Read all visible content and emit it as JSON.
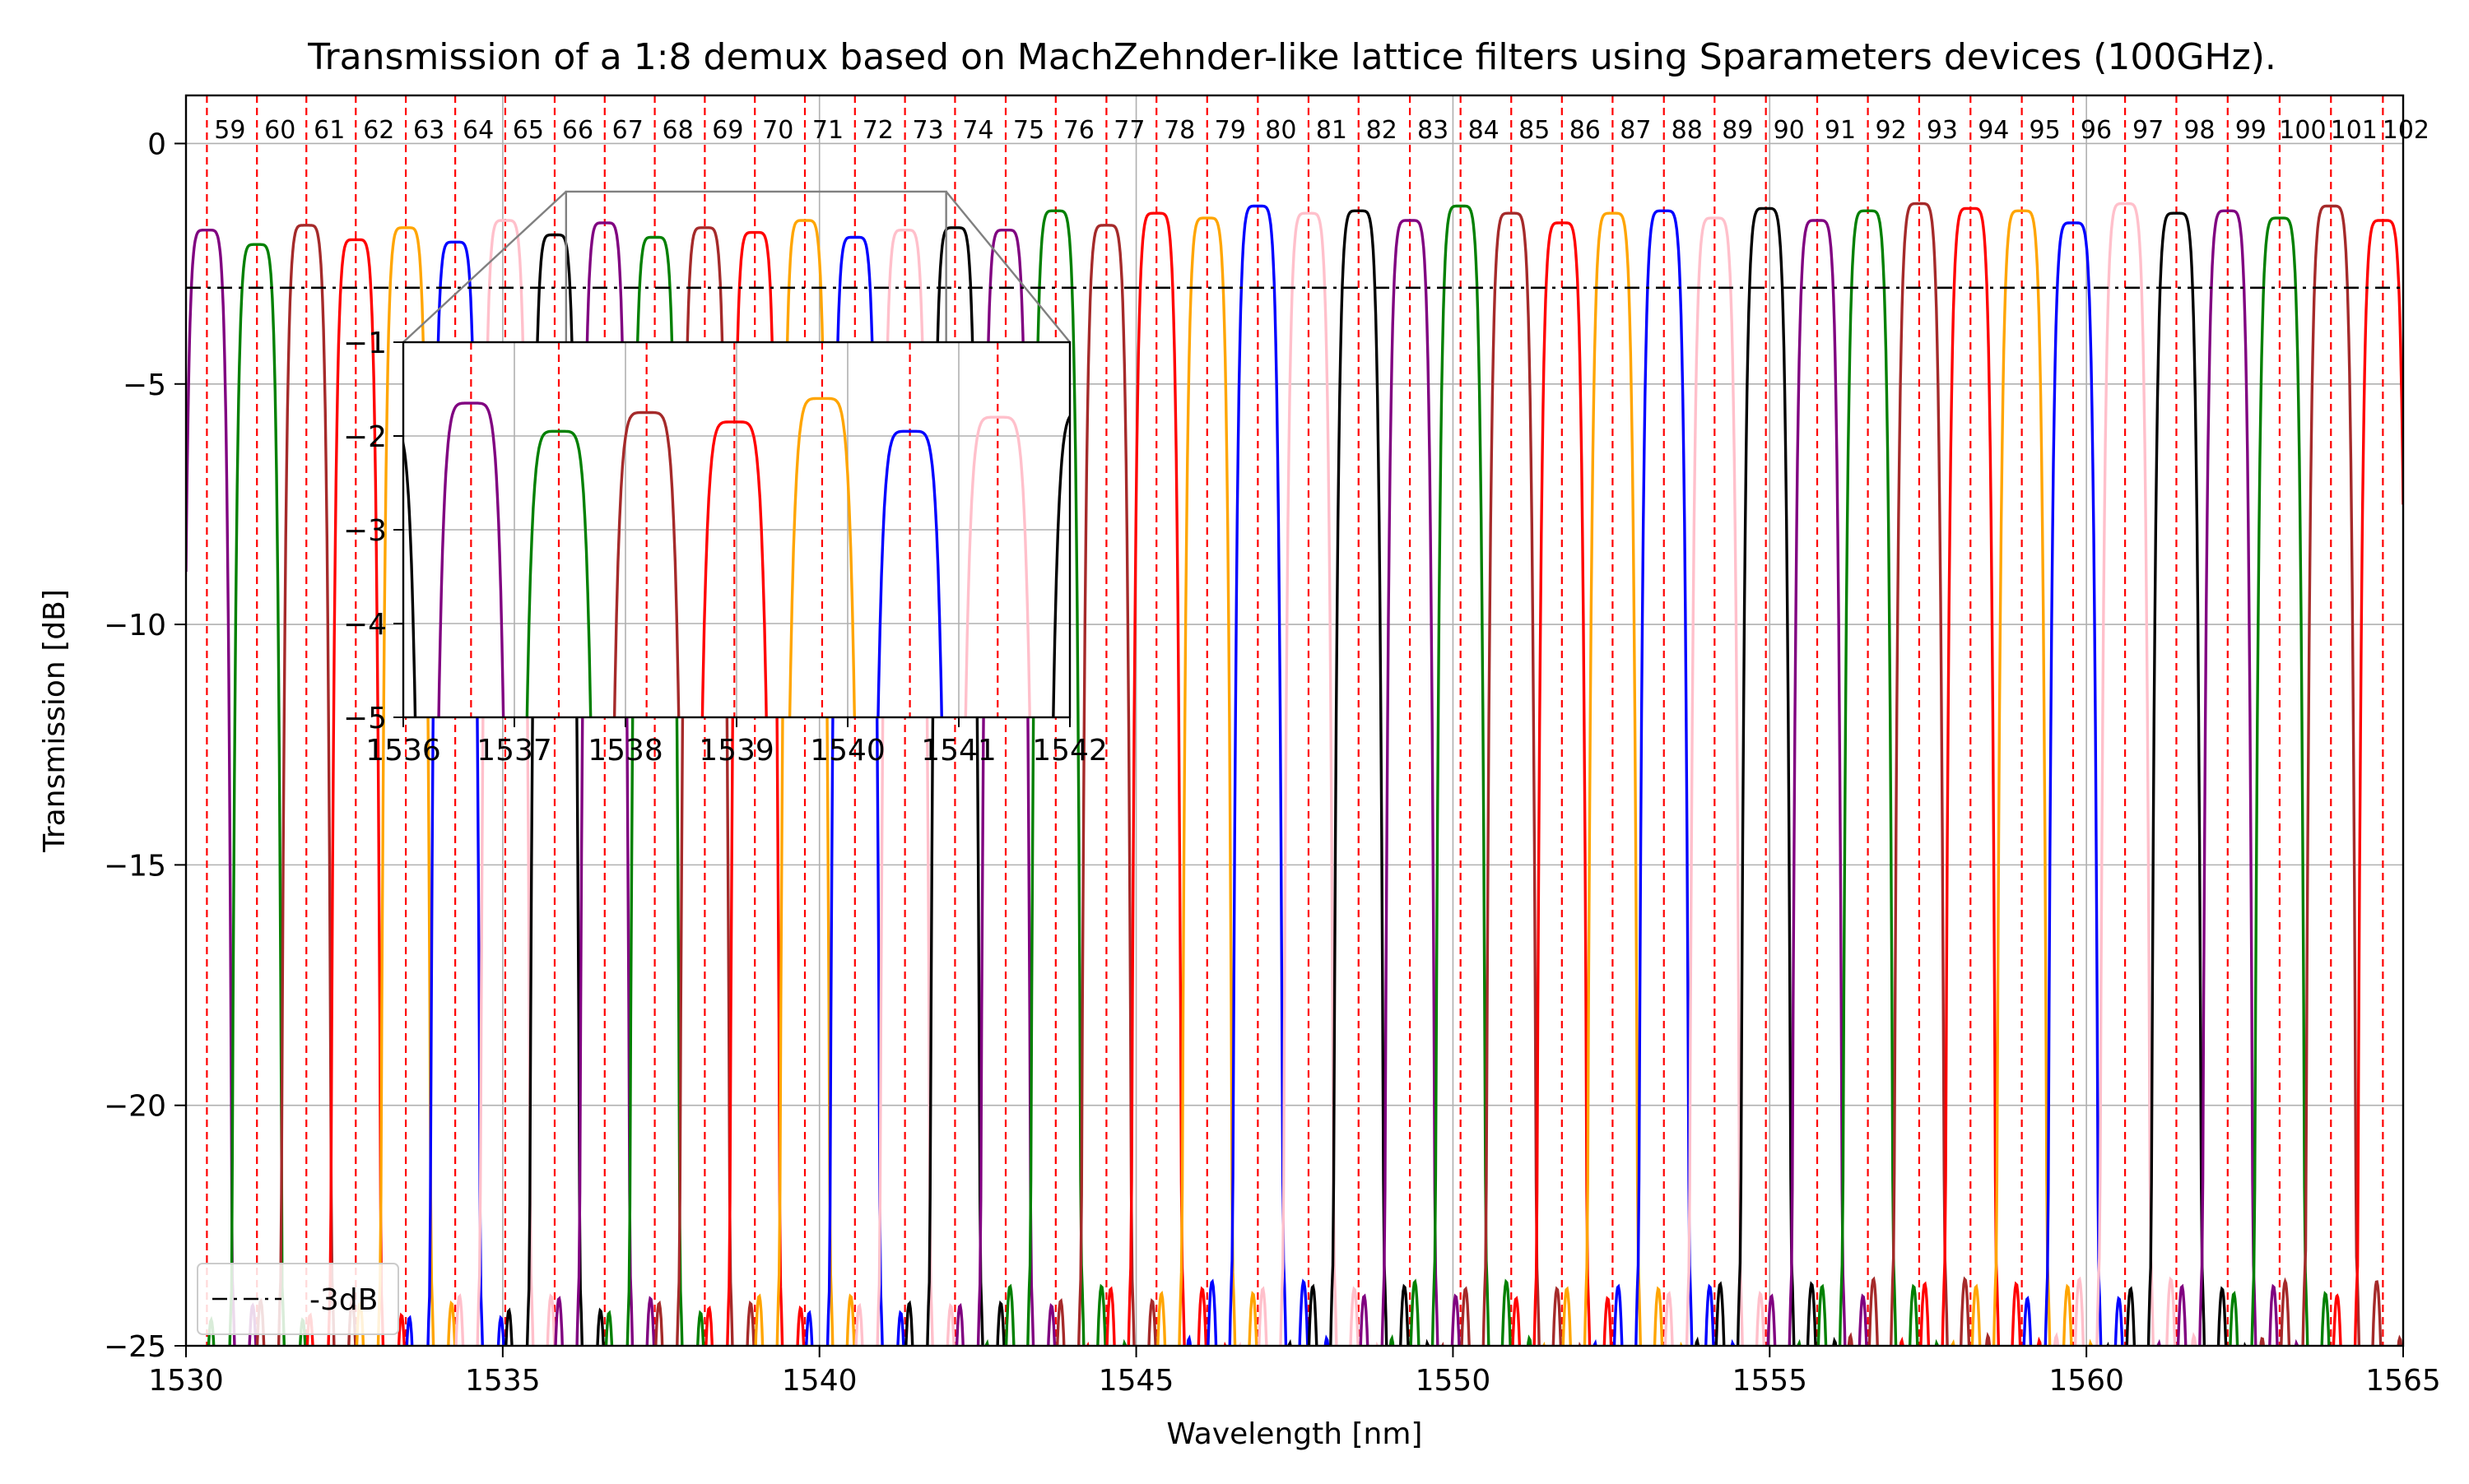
{
  "chart_data": {
    "type": "line",
    "title": "Transmission of a 1:8 demux based on MachZehnder-like lattice filters using Sparameters devices (100GHz).",
    "xlabel": "Wavelength [nm]",
    "ylabel": "Transmission [dB]",
    "xlim": [
      1530,
      1565
    ],
    "ylim": [
      -25,
      1
    ],
    "x_ticks": [
      "1530",
      "1535",
      "1540",
      "1545",
      "1550",
      "1555",
      "1560",
      "1565"
    ],
    "y_ticks": [
      "0",
      "−5",
      "−10",
      "−15",
      "−20",
      "−25"
    ],
    "grid": true,
    "legend": {
      "placement": "lower-left",
      "entries": [
        {
          "label": "-3dB",
          "style": "dash-dot",
          "color": "#000000"
        }
      ]
    },
    "threshold_line": {
      "label": "-3dB",
      "y": -3
    },
    "channel_spacing_nm": 0.8,
    "channels": [
      {
        "label": "59",
        "center": 1530.33
      },
      {
        "label": "60",
        "center": 1531.12
      },
      {
        "label": "61",
        "center": 1531.9
      },
      {
        "label": "62",
        "center": 1532.68
      },
      {
        "label": "63",
        "center": 1533.47
      },
      {
        "label": "64",
        "center": 1534.25
      },
      {
        "label": "65",
        "center": 1535.04
      },
      {
        "label": "66",
        "center": 1535.82
      },
      {
        "label": "67",
        "center": 1536.61
      },
      {
        "label": "68",
        "center": 1537.4
      },
      {
        "label": "69",
        "center": 1538.19
      },
      {
        "label": "70",
        "center": 1538.98
      },
      {
        "label": "71",
        "center": 1539.77
      },
      {
        "label": "72",
        "center": 1540.56
      },
      {
        "label": "73",
        "center": 1541.35
      },
      {
        "label": "74",
        "center": 1542.14
      },
      {
        "label": "75",
        "center": 1542.94
      },
      {
        "label": "76",
        "center": 1543.73
      },
      {
        "label": "77",
        "center": 1544.53
      },
      {
        "label": "78",
        "center": 1545.32
      },
      {
        "label": "79",
        "center": 1546.12
      },
      {
        "label": "80",
        "center": 1546.92
      },
      {
        "label": "81",
        "center": 1547.72
      },
      {
        "label": "82",
        "center": 1548.51
      },
      {
        "label": "83",
        "center": 1549.32
      },
      {
        "label": "84",
        "center": 1550.12
      },
      {
        "label": "85",
        "center": 1550.92
      },
      {
        "label": "86",
        "center": 1551.72
      },
      {
        "label": "87",
        "center": 1552.52
      },
      {
        "label": "88",
        "center": 1553.33
      },
      {
        "label": "89",
        "center": 1554.13
      },
      {
        "label": "90",
        "center": 1554.94
      },
      {
        "label": "91",
        "center": 1555.75
      },
      {
        "label": "92",
        "center": 1556.55
      },
      {
        "label": "93",
        "center": 1557.36
      },
      {
        "label": "94",
        "center": 1558.17
      },
      {
        "label": "95",
        "center": 1558.98
      },
      {
        "label": "96",
        "center": 1559.79
      },
      {
        "label": "97",
        "center": 1560.61
      },
      {
        "label": "98",
        "center": 1561.42
      },
      {
        "label": "99",
        "center": 1562.23
      },
      {
        "label": "100",
        "center": 1563.05
      },
      {
        "label": "101",
        "center": 1563.86
      },
      {
        "label": "102",
        "center": 1564.68
      }
    ],
    "series_colors": [
      "#800080",
      "#008000",
      "#a52a2a",
      "#ff0000",
      "#ffa500",
      "#0000ff",
      "#ffc0cb",
      "#000000"
    ],
    "passband_peaks_db": [
      -1.8,
      -2.1,
      -1.7,
      -2.0,
      -1.75,
      -2.05,
      -1.6,
      -1.9,
      -1.65,
      -1.95,
      -1.75,
      -1.85,
      -1.6,
      -1.95,
      -1.8,
      -1.75,
      -1.8,
      -1.4,
      -1.7,
      -1.45,
      -1.55,
      -1.3,
      -1.45,
      -1.4,
      -1.6,
      -1.3,
      -1.45,
      -1.65,
      -1.45,
      -1.4,
      -1.55,
      -1.35,
      -1.6,
      -1.4,
      -1.25,
      -1.35,
      -1.4,
      -1.65,
      -1.25,
      -1.45,
      -1.4,
      -1.55,
      -1.3,
      -1.6
    ],
    "inset": {
      "xlim": [
        1536,
        1542
      ],
      "ylim": [
        -5,
        -1
      ],
      "x_ticks": [
        "1536",
        "1537",
        "1538",
        "1539",
        "1540",
        "1541",
        "1542"
      ],
      "y_ticks": [
        "−1",
        "−2",
        "−3",
        "−4",
        "−5"
      ],
      "grid": true
    }
  }
}
